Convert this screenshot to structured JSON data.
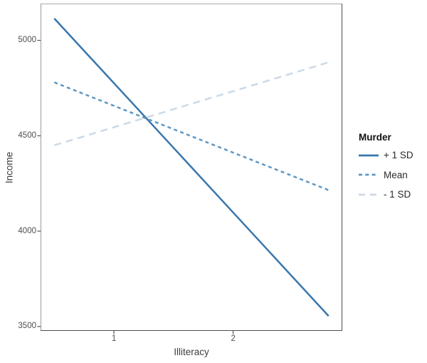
{
  "chart_data": {
    "type": "line",
    "title": "",
    "xlabel": "Illiteracy",
    "ylabel": "Income",
    "xlim": [
      0.385,
      2.915
    ],
    "ylim": [
      3477,
      5193
    ],
    "x_ticks": [
      1,
      2
    ],
    "y_ticks": [
      3500,
      4000,
      4500,
      5000
    ],
    "grid": false,
    "legend": {
      "title": "Murder",
      "position": "right"
    },
    "series": [
      {
        "name": "+ 1 SD",
        "x": [
          0.5,
          2.8
        ],
        "y": [
          5115,
          3555
        ],
        "color": "#3a77ac",
        "linetype": "solid"
      },
      {
        "name": "Mean",
        "x": [
          0.5,
          2.8
        ],
        "y": [
          4780,
          4215
        ],
        "color": "#5e97c4",
        "linetype": "dashed"
      },
      {
        "name": "- 1 SD",
        "x": [
          0.5,
          2.8
        ],
        "y": [
          4450,
          4885
        ],
        "color": "#ccd9e6",
        "linetype": "longdash"
      }
    ],
    "panel_border": {
      "top": "#ababab",
      "left": "#999999",
      "right": "#4d4d4d",
      "bottom": "#4d4d4d"
    },
    "tick_color": "#333333"
  }
}
